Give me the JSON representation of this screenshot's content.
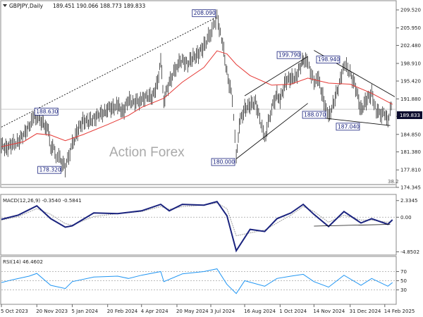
{
  "header": {
    "symbol": "GBPJPY,Daily",
    "ohlc": "189.451 190.066 188.773 189.833"
  },
  "watermark": "Action Forex",
  "chart_data": [
    {
      "type": "line",
      "title": "GBPJPY,Daily",
      "x_ticks": [
        "5 Oct 2023",
        "20 Nov 2023",
        "5 Jan 2024",
        "20 Feb 2024",
        "4 Apr 2024",
        "20 May 2024",
        "3 Jul 2024",
        "16 Aug 2024",
        "1 Oct 2024",
        "14 Nov 2024",
        "31 Dec 2024",
        "14 Feb 2025"
      ],
      "y_ticks": [
        "209.520",
        "205.950",
        "202.480",
        "198.910",
        "195.420",
        "191.880",
        "188.410",
        "184.850",
        "181.380",
        "177.810",
        "174.345"
      ],
      "ylim": [
        174.345,
        211.2
      ],
      "last_price": "189.833",
      "level_tag": "38.2",
      "price": [
        [
          "5 Oct 2023",
          182.6
        ],
        [
          "12 Oct 2023",
          182.2
        ],
        [
          "19 Oct 2023",
          182.8
        ],
        [
          "27 Oct 2023",
          183.5
        ],
        [
          "3 Nov 2023",
          184.7
        ],
        [
          "10 Nov 2023",
          186.6
        ],
        [
          "16 Nov 2023",
          187.9
        ],
        [
          "20 Nov 2023",
          188.6
        ],
        [
          "27 Nov 2023",
          187.2
        ],
        [
          "1 Dec 2023",
          186.8
        ],
        [
          "5 Dec 2023",
          185.2
        ],
        [
          "8 Dec 2023",
          182.4
        ],
        [
          "12 Dec 2023",
          181.8
        ],
        [
          "15 Dec 2023",
          180.6
        ],
        [
          "20 Dec 2023",
          179.9
        ],
        [
          "27 Dec 2023",
          178.3
        ],
        [
          "5 Jan 2024",
          182.8
        ],
        [
          "12 Jan 2024",
          185.5
        ],
        [
          "19 Jan 2024",
          187.6
        ],
        [
          "26 Jan 2024",
          187.3
        ],
        [
          "2 Feb 2024",
          188.0
        ],
        [
          "9 Feb 2024",
          188.7
        ],
        [
          "16 Feb 2024",
          189.3
        ],
        [
          "20 Feb 2024",
          190.0
        ],
        [
          "27 Feb 2024",
          190.2
        ],
        [
          "4 Mar 2024",
          190.5
        ],
        [
          "11 Mar 2024",
          189.4
        ],
        [
          "18 Mar 2024",
          191.5
        ],
        [
          "25 Mar 2024",
          191.3
        ],
        [
          "4 Apr 2024",
          191.5
        ],
        [
          "11 Apr 2024",
          192.6
        ],
        [
          "18 Apr 2024",
          192.0
        ],
        [
          "25 Apr 2024",
          195.4
        ],
        [
          "29 Apr 2024",
          199.3
        ],
        [
          "3 May 2024",
          191.6
        ],
        [
          "10 May 2024",
          195.0
        ],
        [
          "20 May 2024",
          198.6
        ],
        [
          "27 May 2024",
          199.5
        ],
        [
          "3 Jun 2024",
          198.8
        ],
        [
          "10 Jun 2024",
          200.1
        ],
        [
          "17 Jun 2024",
          200.8
        ],
        [
          "24 Jun 2024",
          202.3
        ],
        [
          "3 Jul 2024",
          205.0
        ],
        [
          "11 Jul 2024",
          208.1
        ],
        [
          "17 Jul 2024",
          204.0
        ],
        [
          "24 Jul 2024",
          197.0
        ],
        [
          "31 Jul 2024",
          192.0
        ],
        [
          "5 Aug 2024",
          180.0
        ],
        [
          "9 Aug 2024",
          187.0
        ],
        [
          "16 Aug 2024",
          190.0
        ],
        [
          "23 Aug 2024",
          190.5
        ],
        [
          "30 Aug 2024",
          191.4
        ],
        [
          "6 Sep 2024",
          187.0
        ],
        [
          "11 Sep 2024",
          184.0
        ],
        [
          "20 Sep 2024",
          190.0
        ],
        [
          "27 Sep 2024",
          193.0
        ],
        [
          "1 Oct 2024",
          191.5
        ],
        [
          "8 Oct 2024",
          195.5
        ],
        [
          "15 Oct 2024",
          195.8
        ],
        [
          "22 Oct 2024",
          196.4
        ],
        [
          "29 Oct 2024",
          198.7
        ],
        [
          "31 Oct 2024",
          199.8
        ],
        [
          "6 Nov 2024",
          198.8
        ],
        [
          "14 Nov 2024",
          195.4
        ],
        [
          "20 Nov 2024",
          195.6
        ],
        [
          "27 Nov 2024",
          191.4
        ],
        [
          "3 Dec 2024",
          188.1
        ],
        [
          "10 Dec 2024",
          191.4
        ],
        [
          "17 Dec 2024",
          194.8
        ],
        [
          "23 Dec 2024",
          198.9
        ],
        [
          "31 Dec 2024",
          197.0
        ],
        [
          "7 Jan 2025",
          194.2
        ],
        [
          "14 Jan 2025",
          189.6
        ],
        [
          "21 Jan 2025",
          191.6
        ],
        [
          "28 Jan 2025",
          193.0
        ],
        [
          "3 Feb 2025",
          189.5
        ],
        [
          "7 Feb 2025",
          188.8
        ],
        [
          "14 Feb 2025",
          189.0
        ],
        [
          "18 Feb 2025",
          187.0
        ],
        [
          "21 Feb 2025",
          190.3
        ],
        [
          "24 Feb 2025",
          189.8
        ]
      ],
      "moving_average": [
        [
          "5 Oct 2023",
          182.4
        ],
        [
          "3 Nov 2023",
          183.4
        ],
        [
          "20 Nov 2023",
          185.0
        ],
        [
          "8 Dec 2023",
          184.7
        ],
        [
          "27 Dec 2023",
          183.6
        ],
        [
          "19 Jan 2024",
          184.8
        ],
        [
          "20 Feb 2024",
          186.8
        ],
        [
          "18 Mar 2024",
          188.6
        ],
        [
          "4 Apr 2024",
          190.2
        ],
        [
          "3 May 2024",
          192.0
        ],
        [
          "27 May 2024",
          195.2
        ],
        [
          "24 Jun 2024",
          198.1
        ],
        [
          "11 Jul 2024",
          201.4
        ],
        [
          "24 Jul 2024",
          200.8
        ],
        [
          "5 Aug 2024",
          198.7
        ],
        [
          "23 Aug 2024",
          196.5
        ],
        [
          "20 Sep 2024",
          194.6
        ],
        [
          "15 Oct 2024",
          194.8
        ],
        [
          "6 Nov 2024",
          196.0
        ],
        [
          "3 Dec 2024",
          195.0
        ],
        [
          "31 Dec 2024",
          194.8
        ],
        [
          "28 Jan 2025",
          193.0
        ],
        [
          "24 Feb 2025",
          190.8
        ]
      ],
      "annotations": [
        "188.630",
        "178.320",
        "208.090",
        "180.000",
        "199.790",
        "188.070",
        "198.940",
        "187.040"
      ]
    },
    {
      "type": "line",
      "title": "MACD(12,26,9) -0.3540 -0.5841",
      "y_ticks": [
        "2.3345",
        "0.00",
        "-4.8502"
      ],
      "ylim": [
        -5.2,
        3.0
      ],
      "macd": [
        [
          "5 Oct 2023",
          -0.3
        ],
        [
          "27 Oct 2023",
          0.3
        ],
        [
          "20 Nov 2023",
          1.6
        ],
        [
          "8 Dec 2023",
          -0.2
        ],
        [
          "27 Dec 2023",
          -1.4
        ],
        [
          "5 Jan 2024",
          -1.2
        ],
        [
          "2 Feb 2024",
          0.6
        ],
        [
          "4 Mar 2024",
          0.5
        ],
        [
          "4 Apr 2024",
          0.9
        ],
        [
          "29 Apr 2024",
          1.8
        ],
        [
          "10 May 2024",
          0.9
        ],
        [
          "27 May 2024",
          1.8
        ],
        [
          "24 Jun 2024",
          1.7
        ],
        [
          "11 Jul 2024",
          2.2
        ],
        [
          "24 Jul 2024",
          0.2
        ],
        [
          "5 Aug 2024",
          -4.7
        ],
        [
          "23 Aug 2024",
          -1.7
        ],
        [
          "11 Sep 2024",
          -2.0
        ],
        [
          "27 Sep 2024",
          -0.2
        ],
        [
          "15 Oct 2024",
          0.6
        ],
        [
          "31 Oct 2024",
          1.8
        ],
        [
          "14 Nov 2024",
          0.4
        ],
        [
          "3 Dec 2024",
          -1.3
        ],
        [
          "23 Dec 2024",
          0.8
        ],
        [
          "14 Jan 2025",
          -0.8
        ],
        [
          "28 Jan 2025",
          -0.2
        ],
        [
          "18 Feb 2025",
          -1.0
        ],
        [
          "24 Feb 2025",
          -0.35
        ]
      ],
      "signal": [
        [
          "5 Oct 2023",
          -0.4
        ],
        [
          "27 Oct 2023",
          0.1
        ],
        [
          "20 Nov 2023",
          1.2
        ],
        [
          "8 Dec 2023",
          0.4
        ],
        [
          "27 Dec 2023",
          -0.9
        ],
        [
          "5 Jan 2024",
          -1.1
        ],
        [
          "2 Feb 2024",
          0.1
        ],
        [
          "4 Mar 2024",
          0.5
        ],
        [
          "4 Apr 2024",
          0.8
        ],
        [
          "29 Apr 2024",
          1.5
        ],
        [
          "10 May 2024",
          1.1
        ],
        [
          "27 May 2024",
          1.5
        ],
        [
          "24 Jun 2024",
          1.7
        ],
        [
          "11 Jul 2024",
          2.0
        ],
        [
          "24 Jul 2024",
          1.2
        ],
        [
          "5 Aug 2024",
          -2.6
        ],
        [
          "23 Aug 2024",
          -2.2
        ],
        [
          "11 Sep 2024",
          -1.8
        ],
        [
          "27 Sep 2024",
          -0.8
        ],
        [
          "15 Oct 2024",
          0.3
        ],
        [
          "31 Oct 2024",
          1.5
        ],
        [
          "14 Nov 2024",
          0.8
        ],
        [
          "3 Dec 2024",
          -0.7
        ],
        [
          "23 Dec 2024",
          0.3
        ],
        [
          "14 Jan 2025",
          -0.4
        ],
        [
          "28 Jan 2025",
          -0.4
        ],
        [
          "18 Feb 2025",
          -0.7
        ],
        [
          "24 Feb 2025",
          -0.58
        ]
      ]
    },
    {
      "type": "line",
      "title": "RSI(14) 46.4602",
      "y_ticks": [
        "70",
        "50",
        "30"
      ],
      "ylim": [
        0,
        100
      ],
      "rsi": [
        [
          "5 Oct 2023",
          46
        ],
        [
          "19 Oct 2023",
          52
        ],
        [
          "10 Nov 2023",
          60
        ],
        [
          "20 Nov 2023",
          66
        ],
        [
          "8 Dec 2023",
          40
        ],
        [
          "27 Dec 2023",
          33
        ],
        [
          "5 Jan 2024",
          48
        ],
        [
          "2 Feb 2024",
          58
        ],
        [
          "4 Mar 2024",
          60
        ],
        [
          "18 Mar 2024",
          55
        ],
        [
          "4 Apr 2024",
          62
        ],
        [
          "29 Apr 2024",
          70
        ],
        [
          "3 May 2024",
          48
        ],
        [
          "27 May 2024",
          65
        ],
        [
          "24 Jun 2024",
          70
        ],
        [
          "11 Jul 2024",
          76
        ],
        [
          "24 Jul 2024",
          42
        ],
        [
          "5 Aug 2024",
          22
        ],
        [
          "16 Aug 2024",
          50
        ],
        [
          "11 Sep 2024",
          38
        ],
        [
          "27 Sep 2024",
          55
        ],
        [
          "15 Oct 2024",
          60
        ],
        [
          "31 Oct 2024",
          64
        ],
        [
          "14 Nov 2024",
          48
        ],
        [
          "3 Dec 2024",
          36
        ],
        [
          "23 Dec 2024",
          62
        ],
        [
          "14 Jan 2025",
          40
        ],
        [
          "28 Jan 2025",
          55
        ],
        [
          "18 Feb 2025",
          38
        ],
        [
          "24 Feb 2025",
          46
        ]
      ]
    }
  ]
}
